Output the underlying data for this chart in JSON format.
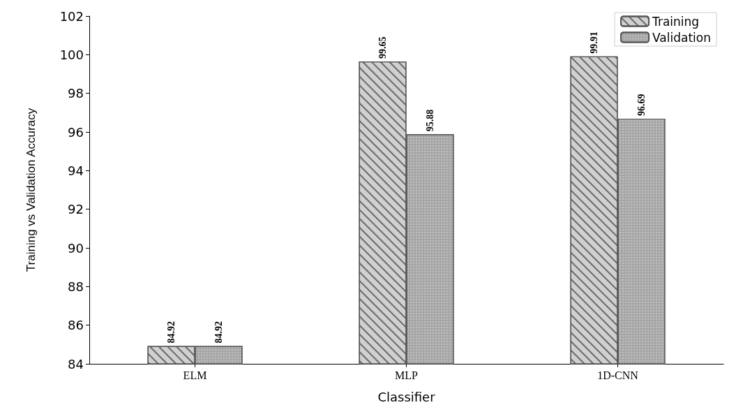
{
  "chart_data": {
    "type": "bar",
    "xlabel": "Classifier",
    "ylabel": "Training vs Validation Accuracy",
    "categories": [
      "ELM",
      "MLP",
      "1D-CNN"
    ],
    "series": [
      {
        "name": "Training",
        "color": "#d0d0d0",
        "values": [
          84.92,
          99.65,
          99.91
        ]
      },
      {
        "name": "Validation",
        "color": "#a6a6a6",
        "values": [
          84.92,
          95.88,
          96.69
        ]
      }
    ],
    "ylim": [
      84,
      102
    ],
    "yticks": [
      84,
      86,
      88,
      90,
      92,
      94,
      96,
      98,
      100,
      102
    ],
    "grid": false,
    "legend": "top right",
    "data_labels": true
  }
}
